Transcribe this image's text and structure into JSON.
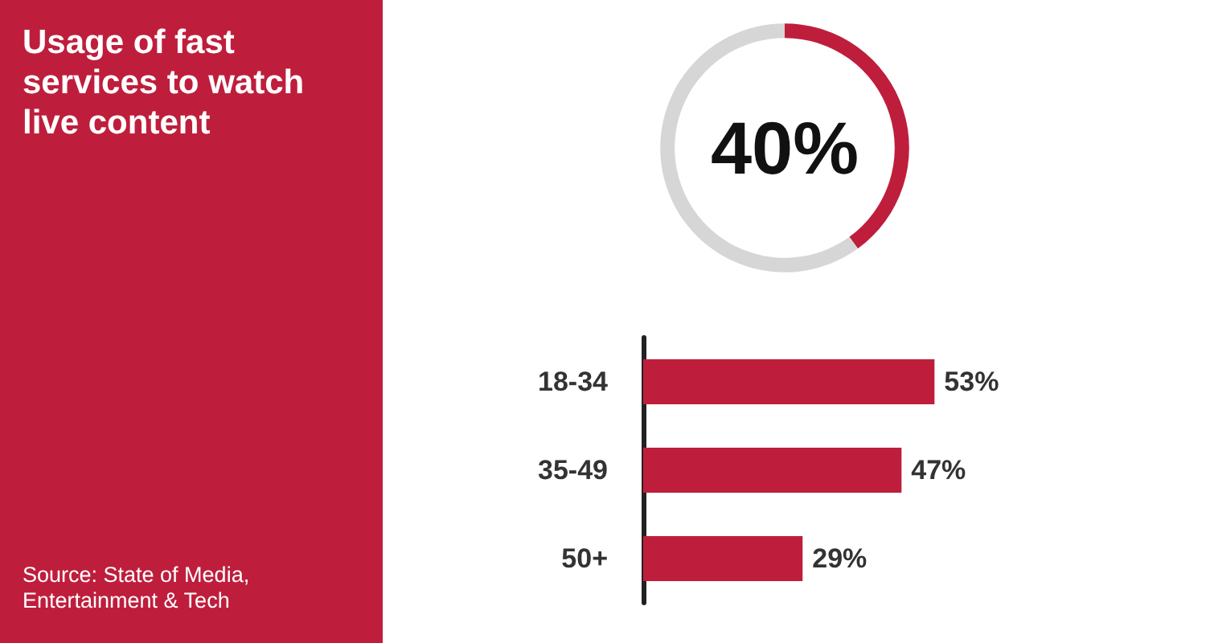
{
  "chart_data": [
    {
      "type": "other",
      "title": "Usage of fast services to watch live content",
      "annotations": [
        "Source: State of Media, Entertainment & Tech"
      ]
    },
    {
      "type": "donut",
      "categories": [
        null,
        null
      ],
      "values": [
        40,
        60
      ],
      "colors": [
        "#be1e3c",
        "#d6d6d6"
      ],
      "value_labels": [
        "40%",
        null
      ]
    },
    {
      "type": "bar",
      "orientation": "horizontal",
      "categories": [
        "18-34",
        "35-49",
        "50+"
      ],
      "values": [
        53,
        47,
        29
      ],
      "color": "#be1e3c",
      "value_labels": [
        "53%",
        "47%",
        "29%"
      ]
    }
  ]
}
